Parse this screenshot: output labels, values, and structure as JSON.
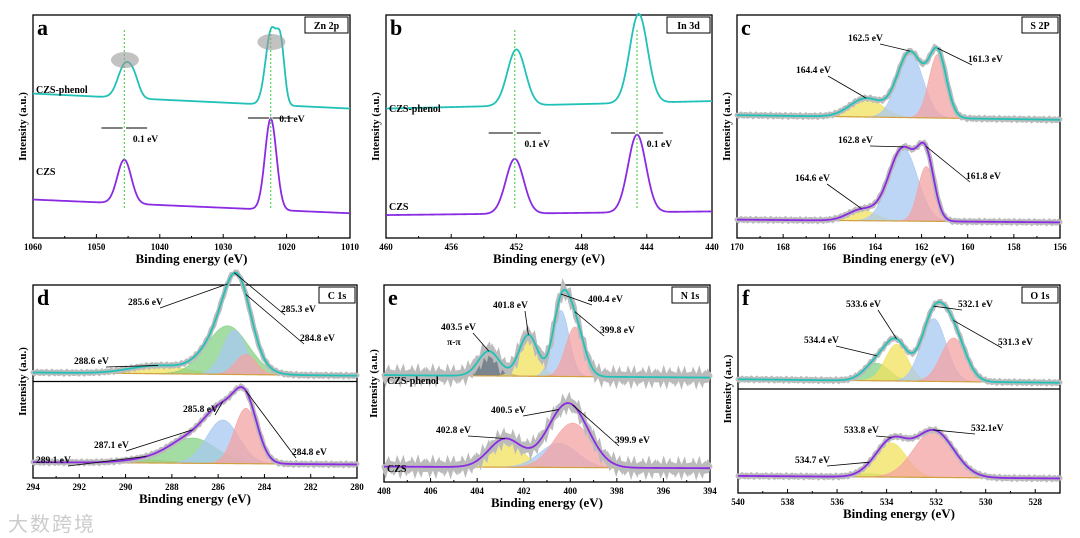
{
  "watermark": "大数跨境",
  "chart_data": [
    {
      "type": "line",
      "letter": "a",
      "title": "Zn 2p",
      "xlabel": "Binding energy (eV)",
      "ylabel": "Intensity (a.u.)",
      "xlim": [
        1060,
        1010
      ],
      "xticks": [
        1060,
        1050,
        1040,
        1030,
        1020,
        1010
      ],
      "shift_label": "0.1 eV",
      "samples": [
        {
          "name": "CZS-phenol",
          "color": "#22c1b8",
          "baseline": [
            0.28,
            0.12
          ],
          "peaks": [
            {
              "center": 1045.5,
              "height": 0.35,
              "width": 1.1
            },
            {
              "center": 1044.0,
              "height": 0.15,
              "width": 0.8
            },
            {
              "center": 1022.4,
              "height": 0.8,
              "width": 0.9
            },
            {
              "center": 1020.9,
              "height": 0.55,
              "width": 0.6
            }
          ],
          "components": [],
          "annotations": []
        },
        {
          "name": "CZS",
          "color": "#8a2be2",
          "baseline": [
            0.25,
            0.1
          ],
          "peaks": [
            {
              "center": 1045.6,
              "height": 0.48,
              "width": 1.1
            },
            {
              "center": 1022.5,
              "height": 1.0,
              "width": 0.9
            }
          ],
          "components": [],
          "annotations": []
        }
      ]
    },
    {
      "type": "line",
      "letter": "b",
      "title": "In 3d",
      "xlabel": "Binding energy (eV)",
      "ylabel": "Intensity (a.u.)",
      "xlim": [
        460,
        440
      ],
      "xticks": [
        460,
        456,
        452,
        448,
        444,
        440
      ],
      "shift_label": "0.1 eV",
      "samples": [
        {
          "name": "CZS-phenol",
          "color": "#22c1b8",
          "baseline": [
            0.12,
            0.2
          ],
          "peaks": [
            {
              "center": 452.0,
              "height": 0.6,
              "width": 0.55
            },
            {
              "center": 444.5,
              "height": 0.95,
              "width": 0.55
            }
          ],
          "components": [],
          "annotations": []
        },
        {
          "name": "CZS",
          "color": "#8a2be2",
          "baseline": [
            0.08,
            0.12
          ],
          "peaks": [
            {
              "center": 452.1,
              "height": 0.6,
              "width": 0.55
            },
            {
              "center": 444.6,
              "height": 0.85,
              "width": 0.55
            }
          ],
          "components": [],
          "annotations": []
        }
      ]
    },
    {
      "type": "area",
      "letter": "c",
      "title": "S 2P",
      "xlabel": "Binding energy (eV)",
      "ylabel": "Intensity (a.u.)",
      "xlim": [
        170,
        156
      ],
      "xticks": [
        170,
        168,
        166,
        164,
        162,
        160,
        158,
        156
      ],
      "samples": [
        {
          "name": "CZS-phenol",
          "color": "#22c1b8",
          "baseline": [
            0.05,
            0.0
          ],
          "components": [
            {
              "center": 164.4,
              "height": 0.2,
              "width": 0.7,
              "color": "#f2e15e"
            },
            {
              "center": 162.5,
              "height": 0.7,
              "width": 0.55,
              "color": "#a8c8f2"
            },
            {
              "center": 161.3,
              "height": 0.68,
              "width": 0.38,
              "color": "#f4a3a3"
            }
          ],
          "annotations": [
            {
              "label": "164.4 eV",
              "x": 164.4
            },
            {
              "label": "162.5 eV",
              "x": 162.5
            },
            {
              "label": "161.3 eV",
              "x": 161.3
            }
          ]
        },
        {
          "name": "CZS",
          "color": "#8a2be2",
          "baseline": [
            0.03,
            0.0
          ],
          "components": [
            {
              "center": 164.6,
              "height": 0.12,
              "width": 0.6,
              "color": "#f2e15e"
            },
            {
              "center": 162.8,
              "height": 0.8,
              "width": 0.62,
              "color": "#a8c8f2"
            },
            {
              "center": 161.8,
              "height": 0.6,
              "width": 0.35,
              "color": "#f4a3a3"
            }
          ],
          "annotations": [
            {
              "label": "164.6 eV",
              "x": 164.6
            },
            {
              "label": "162.8 eV",
              "x": 162.8
            },
            {
              "label": "161.8 eV",
              "x": 161.8
            }
          ]
        }
      ]
    },
    {
      "type": "area",
      "letter": "d",
      "title": "C 1s",
      "divider": true,
      "xlabel": "Binding energy (eV)",
      "ylabel": "Intensity (a.u.)",
      "xlim": [
        294,
        280
      ],
      "xticks": [
        294,
        292,
        290,
        288,
        286,
        284,
        282,
        280
      ],
      "samples": [
        {
          "name": "CZS-phenol",
          "color": "#22c1b8",
          "baseline": [
            0.04,
            0.0
          ],
          "components": [
            {
              "center": 288.6,
              "height": 0.1,
              "width": 1.2,
              "color": "#f2e15e"
            },
            {
              "center": 285.6,
              "height": 0.6,
              "width": 0.9,
              "color": "#86d286"
            },
            {
              "center": 285.3,
              "height": 0.55,
              "width": 0.5,
              "color": "#a8c8f2"
            },
            {
              "center": 284.8,
              "height": 0.25,
              "width": 0.45,
              "color": "#f4a3a3"
            }
          ],
          "annotations": [
            {
              "label": "288.6 eV",
              "x": 288.6
            },
            {
              "label": "285.6 eV",
              "x": 285.6
            },
            {
              "label": "285.3 eV",
              "x": 285.3
            },
            {
              "label": "284.8 eV",
              "x": 284.8
            }
          ]
        },
        {
          "name": "CZS",
          "color": "#8a2be2",
          "baseline": [
            0.03,
            0.0
          ],
          "components": [
            {
              "center": 289.1,
              "height": 0.04,
              "width": 1.0,
              "color": "#f2c07a"
            },
            {
              "center": 287.1,
              "height": 0.32,
              "width": 1.0,
              "color": "#86d286"
            },
            {
              "center": 285.8,
              "height": 0.55,
              "width": 0.7,
              "color": "#a8c8f2"
            },
            {
              "center": 284.8,
              "height": 0.7,
              "width": 0.5,
              "color": "#f4a3a3"
            }
          ],
          "annotations": [
            {
              "label": "289.1 eV",
              "x": 289.1
            },
            {
              "label": "287.1 eV",
              "x": 287.1
            },
            {
              "label": "285.8 eV",
              "x": 285.8
            },
            {
              "label": "284.8 eV",
              "x": 284.8
            }
          ]
        }
      ]
    },
    {
      "type": "area",
      "letter": "e",
      "title": "N 1s",
      "xlabel": "Binding energy (eV)",
      "ylabel": "Intensity (a.u.)",
      "xlim": [
        408,
        394
      ],
      "xticks": [
        408,
        406,
        404,
        402,
        400,
        398,
        396,
        394
      ],
      "extra_label": "π-π",
      "samples": [
        {
          "name": "CZS-phenol",
          "color": "#22c1b8",
          "baseline": [
            0.03,
            0.0
          ],
          "components": [
            {
              "center": 403.5,
              "height": 0.3,
              "width": 0.45,
              "color": "#4e5d6a"
            },
            {
              "center": 401.8,
              "height": 0.5,
              "width": 0.4,
              "color": "#f2e15e"
            },
            {
              "center": 400.4,
              "height": 0.8,
              "width": 0.35,
              "color": "#a8c8f2"
            },
            {
              "center": 399.8,
              "height": 0.6,
              "width": 0.4,
              "color": "#f4a3a3"
            }
          ],
          "annotations": [
            {
              "label": "403.5 eV",
              "x": 403.5
            },
            {
              "label": "401.8 eV",
              "x": 401.8
            },
            {
              "label": "400.4 eV",
              "x": 400.4
            },
            {
              "label": "399.8 eV",
              "x": 399.8
            }
          ]
        },
        {
          "name": "CZS",
          "color": "#8a2be2",
          "baseline": [
            0.02,
            0.0
          ],
          "components": [
            {
              "center": 402.8,
              "height": 0.35,
              "width": 0.7,
              "color": "#f2e15e"
            },
            {
              "center": 400.5,
              "height": 0.3,
              "width": 0.8,
              "color": "#a8c8f2"
            },
            {
              "center": 399.9,
              "height": 0.55,
              "width": 0.8,
              "color": "#f4a3a3"
            }
          ],
          "annotations": [
            {
              "label": "402.8 eV",
              "x": 402.8
            },
            {
              "label": "400.5 eV",
              "x": 400.5
            },
            {
              "label": "399.9 eV",
              "x": 399.9
            }
          ]
        }
      ]
    },
    {
      "type": "area",
      "letter": "f",
      "title": "O 1s",
      "divider": true,
      "xlabel": "Binding energy (eV)",
      "ylabel": "Intensity (a.u.)",
      "xlim": [
        540,
        527
      ],
      "xticks": [
        540,
        538,
        536,
        534,
        532,
        530,
        528
      ],
      "samples": [
        {
          "name": "CZS-phenol",
          "color": "#22c1b8",
          "baseline": [
            0.04,
            0.0
          ],
          "components": [
            {
              "center": 534.4,
              "height": 0.2,
              "width": 0.5,
              "color": "#86d286"
            },
            {
              "center": 533.6,
              "height": 0.42,
              "width": 0.45,
              "color": "#f2e15e"
            },
            {
              "center": 532.1,
              "height": 0.72,
              "width": 0.5,
              "color": "#a8c8f2"
            },
            {
              "center": 531.3,
              "height": 0.5,
              "width": 0.5,
              "color": "#f4a3a3"
            }
          ],
          "annotations": [
            {
              "label": "534.4 eV",
              "x": 534.4
            },
            {
              "label": "533.6 eV",
              "x": 533.6
            },
            {
              "label": "532.1 eV",
              "x": 532.1
            },
            {
              "label": "531.3 eV",
              "x": 531.3
            }
          ]
        },
        {
          "name": "CZS",
          "color": "#8a2be2",
          "baseline": [
            0.03,
            0.0
          ],
          "components": [
            {
              "center": 534.7,
              "height": 0.04,
              "width": 0.5,
              "color": "#86d286"
            },
            {
              "center": 533.8,
              "height": 0.4,
              "width": 0.6,
              "color": "#f2e15e"
            },
            {
              "center": 532.1,
              "height": 0.55,
              "width": 0.8,
              "color": "#f4a3a3"
            }
          ],
          "annotations": [
            {
              "label": "534.7 eV",
              "x": 534.7
            },
            {
              "label": "533.8 eV",
              "x": 533.8
            },
            {
              "label": "532.1eV",
              "x": 532.1
            }
          ]
        }
      ]
    }
  ]
}
